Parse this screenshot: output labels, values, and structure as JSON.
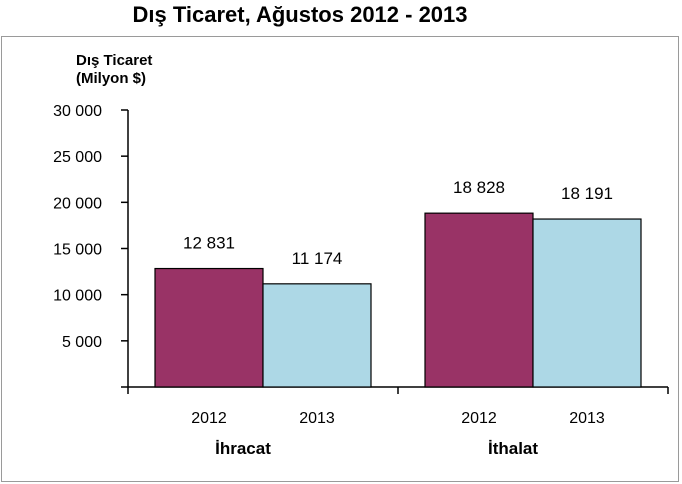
{
  "chart_data": {
    "type": "bar",
    "title": "Dış Ticaret, Ağustos 2012 - 2013",
    "ylabel_lines": [
      "Dış Ticaret",
      "(Milyon $)"
    ],
    "xlabel": "",
    "ylim": [
      0,
      30000
    ],
    "yticks": [
      0,
      5000,
      10000,
      15000,
      20000,
      25000,
      30000
    ],
    "ytick_labels": [
      "",
      "5 000",
      "10 000",
      "15 000",
      "20 000",
      "25 000",
      "30 000"
    ],
    "categories": [
      "İhracat",
      "İthalat"
    ],
    "series": [
      {
        "name": "2012",
        "color": "#993366",
        "values": [
          12831,
          18828
        ],
        "labels": [
          "12 831",
          "18 828"
        ]
      },
      {
        "name": "2013",
        "color": "#add8e6",
        "values": [
          11174,
          18191
        ],
        "labels": [
          "11 174",
          "18 191"
        ]
      }
    ],
    "grid": false,
    "legend": "none"
  }
}
